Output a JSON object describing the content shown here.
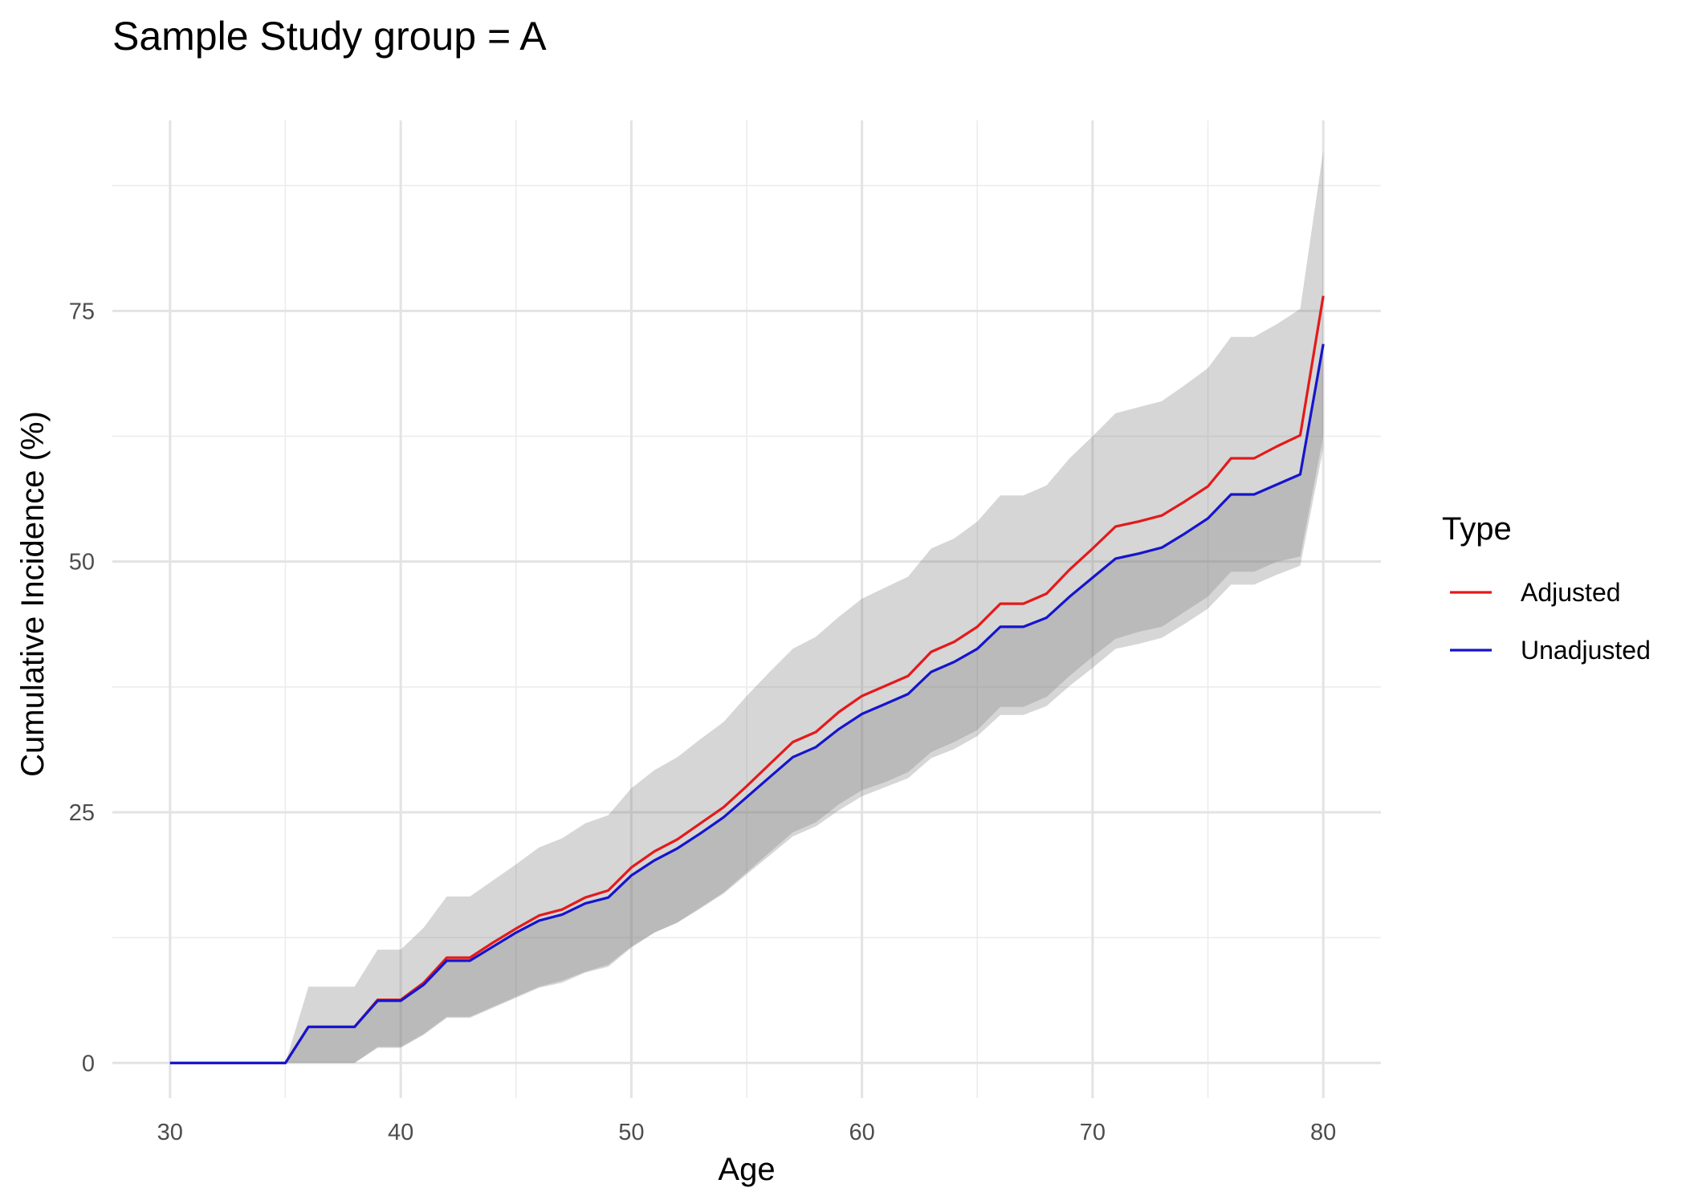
{
  "chart_data": {
    "type": "line",
    "title": "Sample Study group = A",
    "xlabel": "Age",
    "ylabel": "Cumulative Incidence (%)",
    "xlim": [
      27.5,
      82.5
    ],
    "ylim": [
      -3.5,
      94
    ],
    "x_ticks": [
      30,
      40,
      50,
      60,
      70,
      80
    ],
    "y_ticks": [
      0,
      25,
      50,
      75
    ],
    "x_ticks_labels": [
      "30",
      "40",
      "50",
      "60",
      "70",
      "80"
    ],
    "y_ticks_labels": [
      "0",
      "25",
      "50",
      "75"
    ],
    "grid": true,
    "legend": {
      "title": "Type",
      "position": "right"
    },
    "x": [
      30,
      31,
      32,
      33,
      34,
      35,
      36,
      37,
      38,
      39,
      40,
      41,
      42,
      43,
      44,
      45,
      46,
      47,
      48,
      49,
      50,
      51,
      52,
      53,
      54,
      55,
      56,
      57,
      58,
      59,
      60,
      61,
      62,
      63,
      64,
      65,
      66,
      67,
      68,
      69,
      70,
      71,
      72,
      73,
      74,
      75,
      76,
      77,
      78,
      79,
      80
    ],
    "series": [
      {
        "name": "Adjusted",
        "color": "#e31a1c",
        "values": [
          0,
          0,
          0,
          0,
          0,
          0,
          3.6,
          3.6,
          3.6,
          6.3,
          6.3,
          8,
          10.5,
          10.5,
          12,
          13.4,
          14.7,
          15.3,
          16.5,
          17.2,
          19.5,
          21.1,
          22.3,
          23.9,
          25.5,
          27.6,
          29.8,
          32,
          33,
          35,
          36.6,
          37.6,
          38.6,
          41,
          42,
          43.5,
          45.8,
          45.8,
          46.8,
          49.2,
          51.3,
          53.5,
          54,
          54.6,
          56,
          57.5,
          60.3,
          60.3,
          61.5,
          62.6,
          76.5
        ],
        "band_lower": [
          0,
          0,
          0,
          0,
          0,
          0,
          0,
          0,
          0,
          1.5,
          1.5,
          2.8,
          4.5,
          4.5,
          5.5,
          6.5,
          7.5,
          8,
          9,
          9.6,
          11.5,
          13,
          14,
          15.5,
          17,
          19,
          21,
          23,
          24,
          25.8,
          27.2,
          28,
          29,
          31,
          32,
          33.2,
          35.5,
          35.5,
          36.5,
          38.6,
          40.5,
          42.3,
          43,
          43.5,
          45,
          46.5,
          49,
          49,
          50,
          50.5,
          62.5
        ],
        "band_upper": [
          0,
          0,
          0,
          0,
          0,
          0,
          7.6,
          7.6,
          7.6,
          11.3,
          11.3,
          13.5,
          16.6,
          16.6,
          18.2,
          19.8,
          21.5,
          22.4,
          23.9,
          24.7,
          27.4,
          29.2,
          30.5,
          32.3,
          34,
          36.6,
          39,
          41.3,
          42.5,
          44.5,
          46.3,
          47.4,
          48.5,
          51.3,
          52.3,
          54,
          56.6,
          56.6,
          57.6,
          60.3,
          62.5,
          64.8,
          65.4,
          66,
          67.6,
          69.3,
          72.4,
          72.4,
          73.7,
          75.2,
          91
        ]
      },
      {
        "name": "Unadjusted",
        "color": "#1515cc",
        "values": [
          0,
          0,
          0,
          0,
          0,
          0,
          3.6,
          3.6,
          3.6,
          6.2,
          6.2,
          7.8,
          10.2,
          10.2,
          11.6,
          13,
          14.2,
          14.8,
          15.9,
          16.5,
          18.7,
          20.2,
          21.4,
          22.9,
          24.5,
          26.5,
          28.5,
          30.5,
          31.5,
          33.3,
          34.8,
          35.8,
          36.8,
          39,
          40,
          41.3,
          43.5,
          43.5,
          44.4,
          46.5,
          48.4,
          50.3,
          50.8,
          51.4,
          52.8,
          54.3,
          56.7,
          56.7,
          57.7,
          58.7,
          71.7
        ],
        "band_lower": [
          0,
          0,
          0,
          0,
          0,
          0,
          0,
          0,
          0,
          1.6,
          1.6,
          2.9,
          4.6,
          4.6,
          5.6,
          6.6,
          7.6,
          8.2,
          9.1,
          9.8,
          11.6,
          13,
          14,
          15.4,
          16.9,
          18.8,
          20.7,
          22.6,
          23.6,
          25.2,
          26.6,
          27.5,
          28.4,
          30.4,
          31.3,
          32.6,
          34.7,
          34.7,
          35.6,
          37.6,
          39.4,
          41.3,
          41.8,
          42.4,
          43.8,
          45.3,
          47.7,
          47.7,
          48.7,
          49.6,
          61.3
        ]
      }
    ]
  }
}
